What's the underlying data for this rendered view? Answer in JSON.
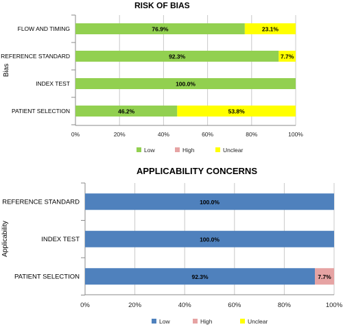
{
  "chart_data": [
    {
      "type": "bar",
      "orientation": "horizontal",
      "stacked": true,
      "title": "RISK OF BIAS",
      "ylabel": "Bias",
      "categories": [
        "FLOW AND TIMING",
        "REFERENCE STANDARD",
        "INDEX TEST",
        "PATIENT SELECTION"
      ],
      "series": [
        {
          "name": "Low",
          "color": "#92d050",
          "values": [
            76.9,
            92.3,
            100.0,
            46.2
          ]
        },
        {
          "name": "High",
          "color": "#e6a3a3",
          "values": [
            0,
            0,
            0,
            0
          ]
        },
        {
          "name": "Unclear",
          "color": "#ffff00",
          "values": [
            23.1,
            7.7,
            0,
            53.8
          ]
        }
      ],
      "xlim": [
        0,
        100
      ],
      "x_ticks": [
        "0%",
        "20%",
        "40%",
        "60%",
        "80%",
        "100%"
      ],
      "value_format": "percent_1dp",
      "legend_position": "bottom",
      "grid": true
    },
    {
      "type": "bar",
      "orientation": "horizontal",
      "stacked": true,
      "title": "APPLICABILITY CONCERNS",
      "ylabel": "Applicability",
      "categories": [
        "REFERENCE STANDARD",
        "INDEX TEST",
        "PATIENT SELECTION"
      ],
      "series": [
        {
          "name": "Low",
          "color": "#4f81bd",
          "values": [
            100.0,
            100.0,
            92.3
          ]
        },
        {
          "name": "High",
          "color": "#e6a3a3",
          "values": [
            0,
            0,
            7.7
          ]
        },
        {
          "name": "Unclear",
          "color": "#ffff00",
          "values": [
            0,
            0,
            0
          ]
        }
      ],
      "xlim": [
        0,
        100
      ],
      "x_ticks": [
        "0%",
        "20%",
        "40%",
        "60%",
        "80%",
        "100%"
      ],
      "value_format": "percent_1dp",
      "legend_position": "bottom",
      "grid": true
    }
  ]
}
